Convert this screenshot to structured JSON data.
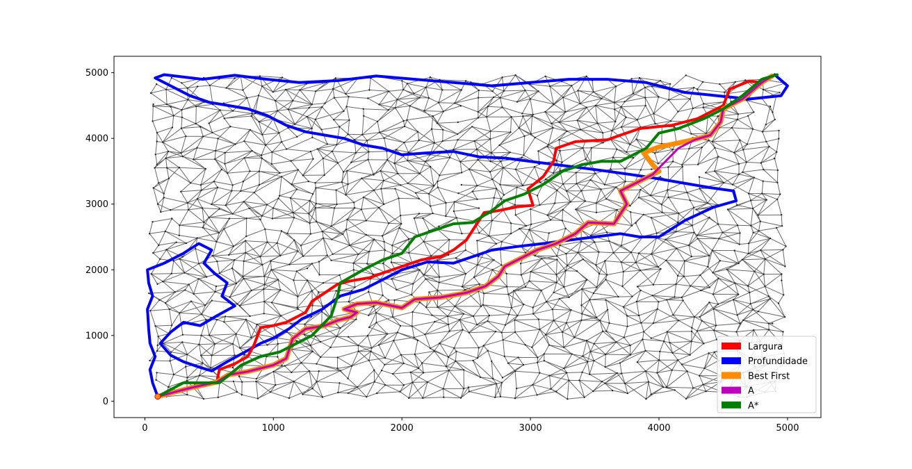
{
  "chart_data": {
    "type": "line",
    "title": "",
    "xlabel": "",
    "ylabel": "",
    "xlim": [
      -240,
      5260
    ],
    "ylim": [
      -250,
      5250
    ],
    "x_ticks": [
      0,
      1000,
      2000,
      3000,
      4000,
      5000
    ],
    "y_ticks": [
      0,
      1000,
      2000,
      3000,
      4000,
      5000
    ],
    "x_tick_labels": [
      "0",
      "1000",
      "2000",
      "3000",
      "4000",
      "5000"
    ],
    "y_tick_labels": [
      "0",
      "1000",
      "2000",
      "3000",
      "4000",
      "5000"
    ],
    "legend_position": "lower-right",
    "background_graph_color": "#666666",
    "series": [
      {
        "name": "Largura",
        "color": "#ff0000",
        "points": [
          [
            100,
            70
          ],
          [
            350,
            200
          ],
          [
            560,
            300
          ],
          [
            580,
            480
          ],
          [
            700,
            570
          ],
          [
            800,
            680
          ],
          [
            850,
            860
          ],
          [
            900,
            1120
          ],
          [
            1000,
            1150
          ],
          [
            1100,
            1200
          ],
          [
            1250,
            1350
          ],
          [
            1300,
            1520
          ],
          [
            1400,
            1650
          ],
          [
            1500,
            1780
          ],
          [
            1600,
            1830
          ],
          [
            1750,
            1880
          ],
          [
            1850,
            1950
          ],
          [
            2000,
            2050
          ],
          [
            2150,
            2150
          ],
          [
            2300,
            2200
          ],
          [
            2400,
            2300
          ],
          [
            2500,
            2450
          ],
          [
            2550,
            2600
          ],
          [
            2640,
            2870
          ],
          [
            2750,
            2900
          ],
          [
            2900,
            2960
          ],
          [
            3020,
            2980
          ],
          [
            2980,
            3230
          ],
          [
            3100,
            3420
          ],
          [
            3180,
            3650
          ],
          [
            3200,
            3850
          ],
          [
            3350,
            3950
          ],
          [
            3600,
            3980
          ],
          [
            3700,
            4050
          ],
          [
            3850,
            4150
          ],
          [
            4100,
            4200
          ],
          [
            4300,
            4300
          ],
          [
            4500,
            4500
          ],
          [
            4550,
            4750
          ],
          [
            4700,
            4870
          ],
          [
            4800,
            4850
          ],
          [
            4880,
            4950
          ]
        ]
      },
      {
        "name": "Profundidade",
        "color": "#0000ff",
        "points": [
          [
            100,
            70
          ],
          [
            60,
            280
          ],
          [
            40,
            480
          ],
          [
            80,
            680
          ],
          [
            40,
            880
          ],
          [
            30,
            1100
          ],
          [
            20,
            1400
          ],
          [
            60,
            1600
          ],
          [
            30,
            1800
          ],
          [
            20,
            2000
          ],
          [
            150,
            2100
          ],
          [
            300,
            2250
          ],
          [
            420,
            2400
          ],
          [
            520,
            2300
          ],
          [
            460,
            2100
          ],
          [
            540,
            1950
          ],
          [
            640,
            1800
          ],
          [
            600,
            1600
          ],
          [
            700,
            1450
          ],
          [
            560,
            1300
          ],
          [
            430,
            1150
          ],
          [
            300,
            1200
          ],
          [
            200,
            1050
          ],
          [
            120,
            880
          ],
          [
            200,
            700
          ],
          [
            300,
            600
          ],
          [
            420,
            520
          ],
          [
            520,
            460
          ],
          [
            640,
            600
          ],
          [
            780,
            750
          ],
          [
            900,
            880
          ],
          [
            1000,
            960
          ],
          [
            1120,
            1100
          ],
          [
            1220,
            1250
          ],
          [
            1380,
            1400
          ],
          [
            1520,
            1600
          ],
          [
            1700,
            1700
          ],
          [
            1850,
            1850
          ],
          [
            2000,
            2000
          ],
          [
            2200,
            2120
          ],
          [
            2400,
            2100
          ],
          [
            2550,
            2200
          ],
          [
            2700,
            2300
          ],
          [
            2880,
            2350
          ],
          [
            3100,
            2400
          ],
          [
            3300,
            2450
          ],
          [
            3500,
            2500
          ],
          [
            3700,
            2550
          ],
          [
            3850,
            2500
          ],
          [
            4000,
            2500
          ],
          [
            4200,
            2750
          ],
          [
            4420,
            2950
          ],
          [
            4600,
            3050
          ],
          [
            4580,
            3200
          ],
          [
            4400,
            3250
          ],
          [
            4250,
            3300
          ],
          [
            4100,
            3350
          ],
          [
            3950,
            3400
          ],
          [
            3780,
            3450
          ],
          [
            3600,
            3500
          ],
          [
            3400,
            3550
          ],
          [
            3200,
            3600
          ],
          [
            3000,
            3650
          ],
          [
            2800,
            3700
          ],
          [
            2600,
            3720
          ],
          [
            2400,
            3800
          ],
          [
            2200,
            3780
          ],
          [
            2000,
            3750
          ],
          [
            1850,
            3850
          ],
          [
            1700,
            3900
          ],
          [
            1550,
            4000
          ],
          [
            1400,
            4050
          ],
          [
            1250,
            4100
          ],
          [
            1100,
            4200
          ],
          [
            950,
            4350
          ],
          [
            800,
            4450
          ],
          [
            650,
            4500
          ],
          [
            500,
            4550
          ],
          [
            350,
            4650
          ],
          [
            200,
            4800
          ],
          [
            80,
            4920
          ],
          [
            150,
            4970
          ],
          [
            450,
            4900
          ],
          [
            700,
            4960
          ],
          [
            950,
            4900
          ],
          [
            1200,
            4850
          ],
          [
            1500,
            4880
          ],
          [
            1800,
            4950
          ],
          [
            2100,
            4900
          ],
          [
            2400,
            4850
          ],
          [
            2700,
            4800
          ],
          [
            3000,
            4850
          ],
          [
            3300,
            4900
          ],
          [
            3600,
            4900
          ],
          [
            3900,
            4850
          ],
          [
            4200,
            4700
          ],
          [
            4450,
            4650
          ],
          [
            4700,
            4600
          ],
          [
            4950,
            4650
          ],
          [
            5000,
            4800
          ],
          [
            4900,
            4970
          ]
        ]
      },
      {
        "name": "Best First",
        "color": "#ff8c00",
        "points": [
          [
            100,
            70
          ],
          [
            350,
            200
          ],
          [
            560,
            290
          ],
          [
            650,
            400
          ],
          [
            800,
            450
          ],
          [
            1000,
            550
          ],
          [
            1100,
            650
          ],
          [
            1150,
            950
          ],
          [
            1250,
            1100
          ],
          [
            1400,
            1150
          ],
          [
            1500,
            1230
          ],
          [
            1600,
            1280
          ],
          [
            1650,
            1350
          ],
          [
            1550,
            1400
          ],
          [
            1650,
            1480
          ],
          [
            1800,
            1500
          ],
          [
            2000,
            1420
          ],
          [
            2100,
            1550
          ],
          [
            2300,
            1580
          ],
          [
            2500,
            1650
          ],
          [
            2650,
            1750
          ],
          [
            2750,
            1900
          ],
          [
            2800,
            2050
          ],
          [
            2950,
            2200
          ],
          [
            3050,
            2300
          ],
          [
            3200,
            2400
          ],
          [
            3350,
            2550
          ],
          [
            3450,
            2720
          ],
          [
            3650,
            2700
          ],
          [
            3700,
            2850
          ],
          [
            3750,
            3000
          ],
          [
            3700,
            3200
          ],
          [
            3800,
            3300
          ],
          [
            3950,
            3450
          ],
          [
            4000,
            3500
          ],
          [
            3950,
            3600
          ],
          [
            3880,
            3780
          ],
          [
            4000,
            3870
          ],
          [
            4150,
            3930
          ],
          [
            4270,
            3980
          ],
          [
            4400,
            4050
          ],
          [
            4480,
            4250
          ],
          [
            4500,
            4450
          ],
          [
            4650,
            4600
          ],
          [
            4800,
            4850
          ],
          [
            4880,
            4950
          ]
        ]
      },
      {
        "name": "A",
        "color": "#bf00bf",
        "points": [
          [
            100,
            70
          ],
          [
            350,
            200
          ],
          [
            560,
            290
          ],
          [
            650,
            400
          ],
          [
            800,
            450
          ],
          [
            1000,
            550
          ],
          [
            1100,
            650
          ],
          [
            1150,
            950
          ],
          [
            1250,
            1100
          ],
          [
            1400,
            1150
          ],
          [
            1500,
            1230
          ],
          [
            1600,
            1280
          ],
          [
            1650,
            1350
          ],
          [
            1550,
            1400
          ],
          [
            1650,
            1480
          ],
          [
            1800,
            1500
          ],
          [
            2000,
            1420
          ],
          [
            2100,
            1550
          ],
          [
            2300,
            1580
          ],
          [
            2500,
            1650
          ],
          [
            2650,
            1750
          ],
          [
            2750,
            1900
          ],
          [
            2800,
            2050
          ],
          [
            2950,
            2200
          ],
          [
            3050,
            2300
          ],
          [
            3200,
            2400
          ],
          [
            3350,
            2550
          ],
          [
            3450,
            2720
          ],
          [
            3650,
            2700
          ],
          [
            3700,
            2850
          ],
          [
            3750,
            3000
          ],
          [
            3700,
            3200
          ],
          [
            3800,
            3300
          ],
          [
            3950,
            3450
          ],
          [
            4050,
            3650
          ],
          [
            4150,
            3850
          ],
          [
            4280,
            3980
          ],
          [
            4400,
            4050
          ],
          [
            4480,
            4250
          ],
          [
            4500,
            4450
          ],
          [
            4650,
            4600
          ],
          [
            4800,
            4850
          ],
          [
            4880,
            4950
          ]
        ]
      },
      {
        "name": "A*",
        "color": "#008000",
        "points": [
          [
            100,
            70
          ],
          [
            300,
            280
          ],
          [
            580,
            280
          ],
          [
            750,
            550
          ],
          [
            900,
            680
          ],
          [
            1050,
            750
          ],
          [
            1200,
            900
          ],
          [
            1300,
            1000
          ],
          [
            1450,
            1300
          ],
          [
            1500,
            1600
          ],
          [
            1520,
            1800
          ],
          [
            1700,
            2000
          ],
          [
            1850,
            2150
          ],
          [
            2000,
            2250
          ],
          [
            2100,
            2500
          ],
          [
            2250,
            2600
          ],
          [
            2400,
            2700
          ],
          [
            2550,
            2720
          ],
          [
            2700,
            2900
          ],
          [
            2800,
            3050
          ],
          [
            2950,
            3150
          ],
          [
            3100,
            3300
          ],
          [
            3250,
            3500
          ],
          [
            3400,
            3600
          ],
          [
            3550,
            3650
          ],
          [
            3700,
            3650
          ],
          [
            3900,
            3850
          ],
          [
            4000,
            4080
          ],
          [
            4150,
            4150
          ],
          [
            4350,
            4300
          ],
          [
            4500,
            4450
          ],
          [
            4650,
            4650
          ],
          [
            4800,
            4900
          ],
          [
            4920,
            4970
          ]
        ]
      }
    ]
  }
}
